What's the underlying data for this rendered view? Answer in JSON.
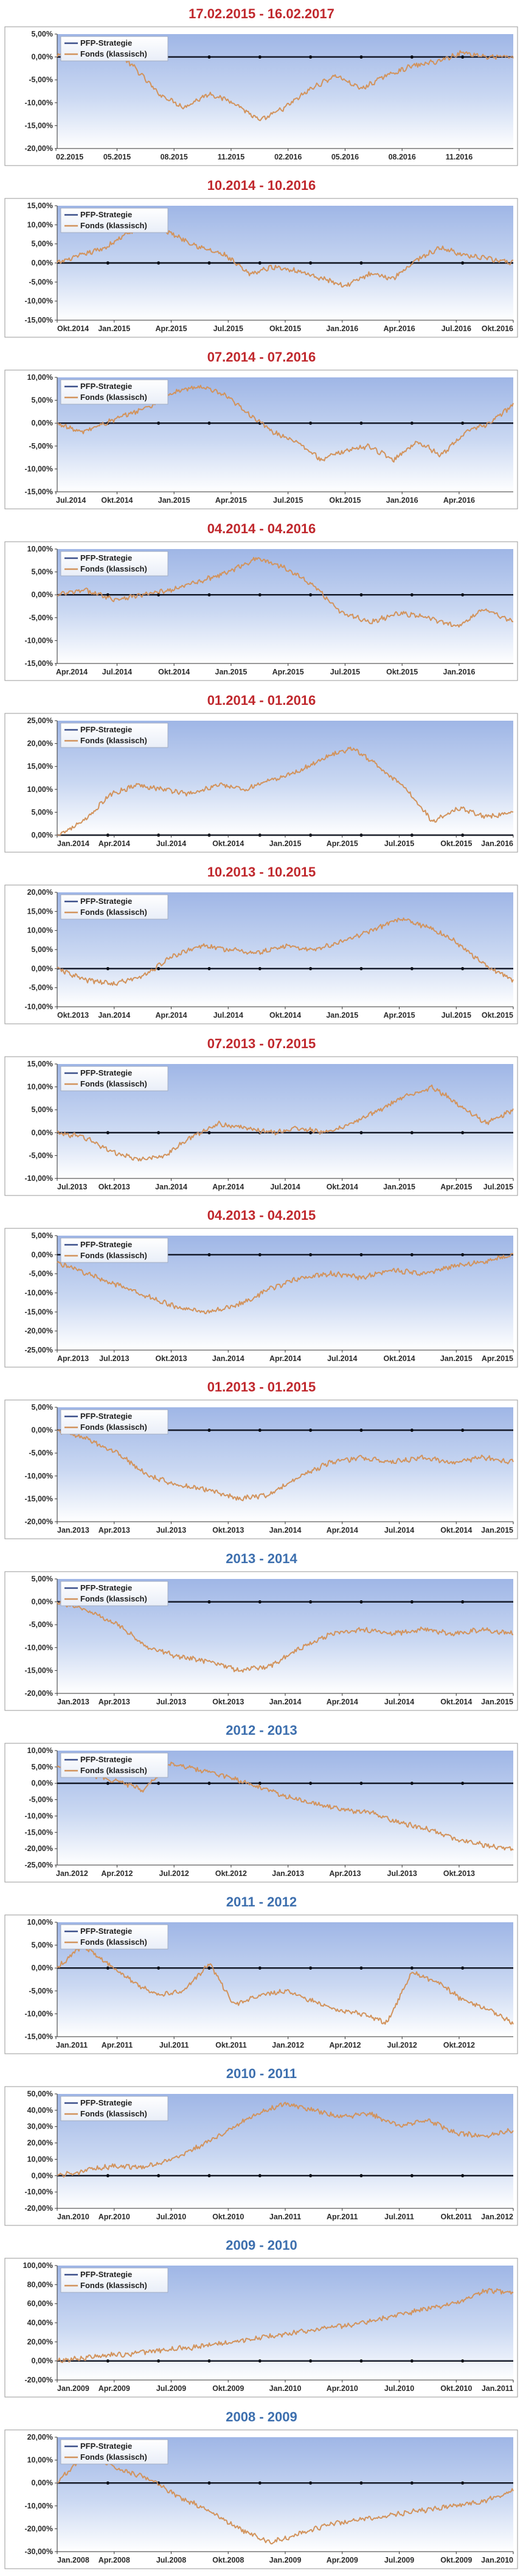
{
  "colors": {
    "title_red": "#c0282d",
    "title_blue": "#3d6fae",
    "fonds_line": "#d2935c",
    "pfp_line": "#3b4f8a",
    "panel_bg_top": "#9fb6e6",
    "panel_bg_bottom": "#ffffff",
    "axis": "#000000"
  },
  "chart_data": [
    {
      "type": "line",
      "title": "17.02.2015 - 16.02.2017",
      "title_color": "red",
      "ylim": [
        -20,
        5
      ],
      "ystep": 5,
      "x_tick_labels": [
        "02.2015",
        "05.2015",
        "08.2015",
        "11.2015",
        "02.2016",
        "05.2016",
        "08.2016",
        "11.2016"
      ],
      "x_label_anchor": "start",
      "legend": [
        "PFP-Strategie",
        "Fonds (klassisch)"
      ],
      "series": [
        {
          "name": "PFP-Strategie",
          "values": [
            0,
            0
          ]
        },
        {
          "name": "Fonds (klassisch)",
          "values": [
            0,
            3,
            2,
            -2,
            -8,
            -11,
            -8,
            -10,
            -14,
            -11,
            -7,
            -4,
            -7,
            -4,
            -2,
            -1,
            1,
            0,
            0
          ]
        }
      ]
    },
    {
      "type": "line",
      "title": "10.2014 - 10.2016",
      "title_color": "red",
      "ylim": [
        -15,
        15
      ],
      "ystep": 5,
      "x_tick_labels": [
        "Okt.2014",
        "Jan.2015",
        "Apr.2015",
        "Jul.2015",
        "Okt.2015",
        "Jan.2016",
        "Apr.2016",
        "Jul.2016",
        "Okt.2016"
      ],
      "x_label_anchor": "edges",
      "legend": [
        "PFP-Strategie",
        "Fonds (klassisch)"
      ],
      "series": [
        {
          "name": "PFP-Strategie",
          "values": [
            0,
            0
          ]
        },
        {
          "name": "Fonds (klassisch)",
          "values": [
            0,
            2,
            4,
            8,
            10,
            7,
            4,
            2,
            -3,
            -1,
            -2,
            -4,
            -6,
            -3,
            -4,
            1,
            4,
            2,
            1,
            0
          ]
        }
      ]
    },
    {
      "type": "line",
      "title": "07.2014 - 07.2016",
      "title_color": "red",
      "ylim": [
        -15,
        10
      ],
      "ystep": 5,
      "x_tick_labels": [
        "Jul.2014",
        "Okt.2014",
        "Jan.2015",
        "Apr.2015",
        "Jul.2015",
        "Okt.2015",
        "Jan.2016",
        "Apr.2016"
      ],
      "x_label_anchor": "start",
      "legend": [
        "PFP-Strategie",
        "Fonds (klassisch)"
      ],
      "series": [
        {
          "name": "PFP-Strategie",
          "values": [
            0,
            0
          ]
        },
        {
          "name": "Fonds (klassisch)",
          "values": [
            0,
            -2,
            0,
            2,
            4,
            7,
            8,
            6,
            2,
            -2,
            -4,
            -8,
            -6,
            -5,
            -8,
            -4,
            -7,
            -2,
            0,
            4
          ]
        }
      ]
    },
    {
      "type": "line",
      "title": "04.2014 - 04.2016",
      "title_color": "red",
      "ylim": [
        -15,
        10
      ],
      "ystep": 5,
      "x_tick_labels": [
        "Apr.2014",
        "Jul.2014",
        "Okt.2014",
        "Jan.2015",
        "Apr.2015",
        "Jul.2015",
        "Okt.2015",
        "Jan.2016"
      ],
      "x_label_anchor": "start",
      "legend": [
        "PFP-Strategie",
        "Fonds (klassisch)"
      ],
      "series": [
        {
          "name": "PFP-Strategie",
          "values": [
            0,
            0
          ]
        },
        {
          "name": "Fonds (klassisch)",
          "values": [
            0,
            1,
            -1,
            0,
            1,
            3,
            5,
            8,
            6,
            2,
            -4,
            -6,
            -4,
            -5,
            -7,
            -3,
            -6
          ]
        }
      ]
    },
    {
      "type": "line",
      "title": "01.2014 - 01.2016",
      "title_color": "red",
      "ylim": [
        0,
        25
      ],
      "ystep": 5,
      "x_tick_labels": [
        "Jan.2014",
        "Apr.2014",
        "Jul.2014",
        "Okt.2014",
        "Jan.2015",
        "Apr.2015",
        "Jul.2015",
        "Okt.2015",
        "Jan.2016"
      ],
      "x_label_anchor": "edges",
      "legend": [
        "PFP-Strategie",
        "Fonds (klassisch)"
      ],
      "series": [
        {
          "name": "PFP-Strategie",
          "values": [
            0,
            0
          ]
        },
        {
          "name": "Fonds (klassisch)",
          "values": [
            0,
            3,
            9,
            11,
            10,
            9,
            11,
            10,
            12,
            14,
            17,
            19,
            15,
            10,
            3,
            6,
            4,
            5
          ]
        }
      ]
    },
    {
      "type": "line",
      "title": "10.2013 - 10.2015",
      "title_color": "red",
      "ylim": [
        -10,
        20
      ],
      "ystep": 5,
      "x_tick_labels": [
        "Okt.2013",
        "Jan.2014",
        "Apr.2014",
        "Jul.2014",
        "Okt.2014",
        "Jan.2015",
        "Apr.2015",
        "Jul.2015",
        "Okt.2015"
      ],
      "x_label_anchor": "edges",
      "legend": [
        "PFP-Strategie",
        "Fonds (klassisch)"
      ],
      "series": [
        {
          "name": "PFP-Strategie",
          "values": [
            0,
            0
          ]
        },
        {
          "name": "Fonds (klassisch)",
          "values": [
            0,
            -3,
            -4,
            -2,
            3,
            6,
            5,
            4,
            6,
            5,
            7,
            10,
            13,
            11,
            7,
            1,
            -3
          ]
        }
      ]
    },
    {
      "type": "line",
      "title": "07.2013 - 07.2015",
      "title_color": "red",
      "ylim": [
        -10,
        15
      ],
      "ystep": 5,
      "x_tick_labels": [
        "Jul.2013",
        "Okt.2013",
        "Jan.2014",
        "Apr.2014",
        "Jul.2014",
        "Okt.2014",
        "Jan.2015",
        "Apr.2015",
        "Jul.2015"
      ],
      "x_label_anchor": "edges",
      "legend": [
        "PFP-Strategie",
        "Fonds (klassisch)"
      ],
      "series": [
        {
          "name": "PFP-Strategie",
          "values": [
            0,
            0
          ]
        },
        {
          "name": "Fonds (klassisch)",
          "values": [
            0,
            -1,
            -4,
            -6,
            -5,
            -1,
            2,
            1,
            0,
            1,
            0,
            2,
            5,
            8,
            10,
            6,
            2,
            5
          ]
        }
      ]
    },
    {
      "type": "line",
      "title": "04.2013 - 04.2015",
      "title_color": "red",
      "ylim": [
        -25,
        5
      ],
      "ystep": 5,
      "x_tick_labels": [
        "Apr.2013",
        "Jul.2013",
        "Okt.2013",
        "Jan.2014",
        "Apr.2014",
        "Jul.2014",
        "Okt.2014",
        "Jan.2015",
        "Apr.2015"
      ],
      "x_label_anchor": "edges",
      "legend": [
        "PFP-Strategie",
        "Fonds (klassisch)"
      ],
      "series": [
        {
          "name": "PFP-Strategie",
          "values": [
            0,
            0
          ]
        },
        {
          "name": "Fonds (klassisch)",
          "values": [
            -2,
            -5,
            -8,
            -11,
            -14,
            -15,
            -13,
            -9,
            -6,
            -5,
            -6,
            -4,
            -5,
            -3,
            -2,
            0
          ]
        }
      ]
    },
    {
      "type": "line",
      "title": "01.2013 - 01.2015",
      "title_color": "red",
      "ylim": [
        -20,
        5
      ],
      "ystep": 5,
      "x_tick_labels": [
        "Jan.2013",
        "Apr.2013",
        "Jul.2013",
        "Okt.2013",
        "Jan.2014",
        "Apr.2014",
        "Jul.2014",
        "Okt.2014",
        "Jan.2015"
      ],
      "x_label_anchor": "edges",
      "legend": [
        "PFP-Strategie",
        "Fonds (klassisch)"
      ],
      "series": [
        {
          "name": "PFP-Strategie",
          "values": [
            0,
            0
          ]
        },
        {
          "name": "Fonds (klassisch)",
          "values": [
            0,
            -2,
            -5,
            -10,
            -12,
            -13,
            -15,
            -14,
            -10,
            -7,
            -6,
            -7,
            -6,
            -7,
            -6,
            -7
          ]
        }
      ]
    },
    {
      "type": "line",
      "title": "2013 - 2014",
      "title_color": "blue",
      "ylim": [
        -20,
        5
      ],
      "ystep": 5,
      "x_tick_labels": [
        "Jan.2013",
        "Apr.2013",
        "Jul.2013",
        "Okt.2013",
        "Jan.2014",
        "Apr.2014",
        "Jul.2014",
        "Okt.2014",
        "Jan.2015"
      ],
      "x_label_anchor": "edges",
      "legend": [
        "PFP-Strategie",
        "Fonds (klassisch)"
      ],
      "series": [
        {
          "name": "PFP-Strategie",
          "values": [
            0,
            0
          ]
        },
        {
          "name": "Fonds (klassisch)",
          "values": [
            0,
            -2,
            -5,
            -10,
            -12,
            -13,
            -15,
            -14,
            -10,
            -7,
            -6,
            -7,
            -6,
            -7,
            -6,
            -7
          ]
        }
      ]
    },
    {
      "type": "line",
      "title": "2012 - 2013",
      "title_color": "blue",
      "ylim": [
        -25,
        10
      ],
      "ystep": 5,
      "x_tick_labels": [
        "Jan.2012",
        "Apr.2012",
        "Jul.2012",
        "Okt.2012",
        "Jan.2013",
        "Apr.2013",
        "Jul.2013",
        "Okt.2013"
      ],
      "x_label_anchor": "start",
      "legend": [
        "PFP-Strategie",
        "Fonds (klassisch)"
      ],
      "series": [
        {
          "name": "PFP-Strategie",
          "values": [
            0,
            0
          ]
        },
        {
          "name": "Fonds (klassisch)",
          "values": [
            5,
            3,
            1,
            -2,
            6,
            4,
            2,
            -1,
            -4,
            -6,
            -8,
            -9,
            -12,
            -14,
            -17,
            -19,
            -20
          ]
        }
      ]
    },
    {
      "type": "line",
      "title": "2011 - 2012",
      "title_color": "blue",
      "ylim": [
        -15,
        10
      ],
      "ystep": 5,
      "x_tick_labels": [
        "Jan.2011",
        "Apr.2011",
        "Jul.2011",
        "Okt.2011",
        "Jan.2012",
        "Apr.2012",
        "Jul.2012",
        "Okt.2012"
      ],
      "x_label_anchor": "start",
      "legend": [
        "PFP-Strategie",
        "Fonds (klassisch)"
      ],
      "series": [
        {
          "name": "PFP-Strategie",
          "values": [
            0,
            0
          ]
        },
        {
          "name": "Fonds (klassisch)",
          "values": [
            0,
            5,
            1,
            -3,
            -6,
            -5,
            1,
            -8,
            -6,
            -5,
            -7,
            -9,
            -10,
            -12,
            -1,
            -3,
            -7,
            -9,
            -12
          ]
        }
      ]
    },
    {
      "type": "line",
      "title": "2010 - 2011",
      "title_color": "blue",
      "ylim": [
        -20,
        50
      ],
      "ystep": 10,
      "x_tick_labels": [
        "Jan.2010",
        "Apr.2010",
        "Jul.2010",
        "Okt.2010",
        "Jan.2011",
        "Apr.2011",
        "Jul.2011",
        "Okt.2011",
        "Jan.2012"
      ],
      "x_label_anchor": "edges",
      "legend": [
        "PFP-Strategie",
        "Fonds (klassisch)"
      ],
      "series": [
        {
          "name": "PFP-Strategie",
          "values": [
            0,
            0
          ]
        },
        {
          "name": "Fonds (klassisch)",
          "values": [
            0,
            3,
            6,
            5,
            10,
            18,
            28,
            38,
            44,
            40,
            36,
            38,
            30,
            34,
            26,
            24,
            28
          ]
        }
      ]
    },
    {
      "type": "line",
      "title": "2009 - 2010",
      "title_color": "blue",
      "ylim": [
        -20,
        100
      ],
      "ystep": 20,
      "x_tick_labels": [
        "Jan.2009",
        "Apr.2009",
        "Jul.2009",
        "Okt.2009",
        "Jan.2010",
        "Apr.2010",
        "Jul.2010",
        "Okt.2010",
        "Jan.2011"
      ],
      "x_label_anchor": "edges",
      "legend": [
        "PFP-Strategie",
        "Fonds (klassisch)"
      ],
      "series": [
        {
          "name": "PFP-Strategie",
          "values": [
            0,
            0
          ]
        },
        {
          "name": "Fonds (klassisch)",
          "values": [
            0,
            3,
            6,
            8,
            12,
            14,
            18,
            22,
            26,
            30,
            34,
            38,
            44,
            50,
            56,
            62,
            74,
            72
          ]
        }
      ]
    },
    {
      "type": "line",
      "title": "2008 - 2009",
      "title_color": "blue",
      "ylim": [
        -30,
        20
      ],
      "ystep": 10,
      "x_tick_labels": [
        "Jan.2008",
        "Apr.2008",
        "Jul.2008",
        "Okt.2008",
        "Jan.2009",
        "Apr.2009",
        "Jul.2009",
        "Okt.2009",
        "Jan.2010"
      ],
      "x_label_anchor": "edges",
      "legend": [
        "PFP-Strategie",
        "Fonds (klassisch)"
      ],
      "series": [
        {
          "name": "PFP-Strategie",
          "values": [
            0,
            0
          ]
        },
        {
          "name": "Fonds (klassisch)",
          "values": [
            0,
            14,
            6,
            2,
            -6,
            -12,
            -20,
            -26,
            -22,
            -18,
            -16,
            -14,
            -12,
            -10,
            -8,
            -3
          ]
        }
      ]
    }
  ]
}
